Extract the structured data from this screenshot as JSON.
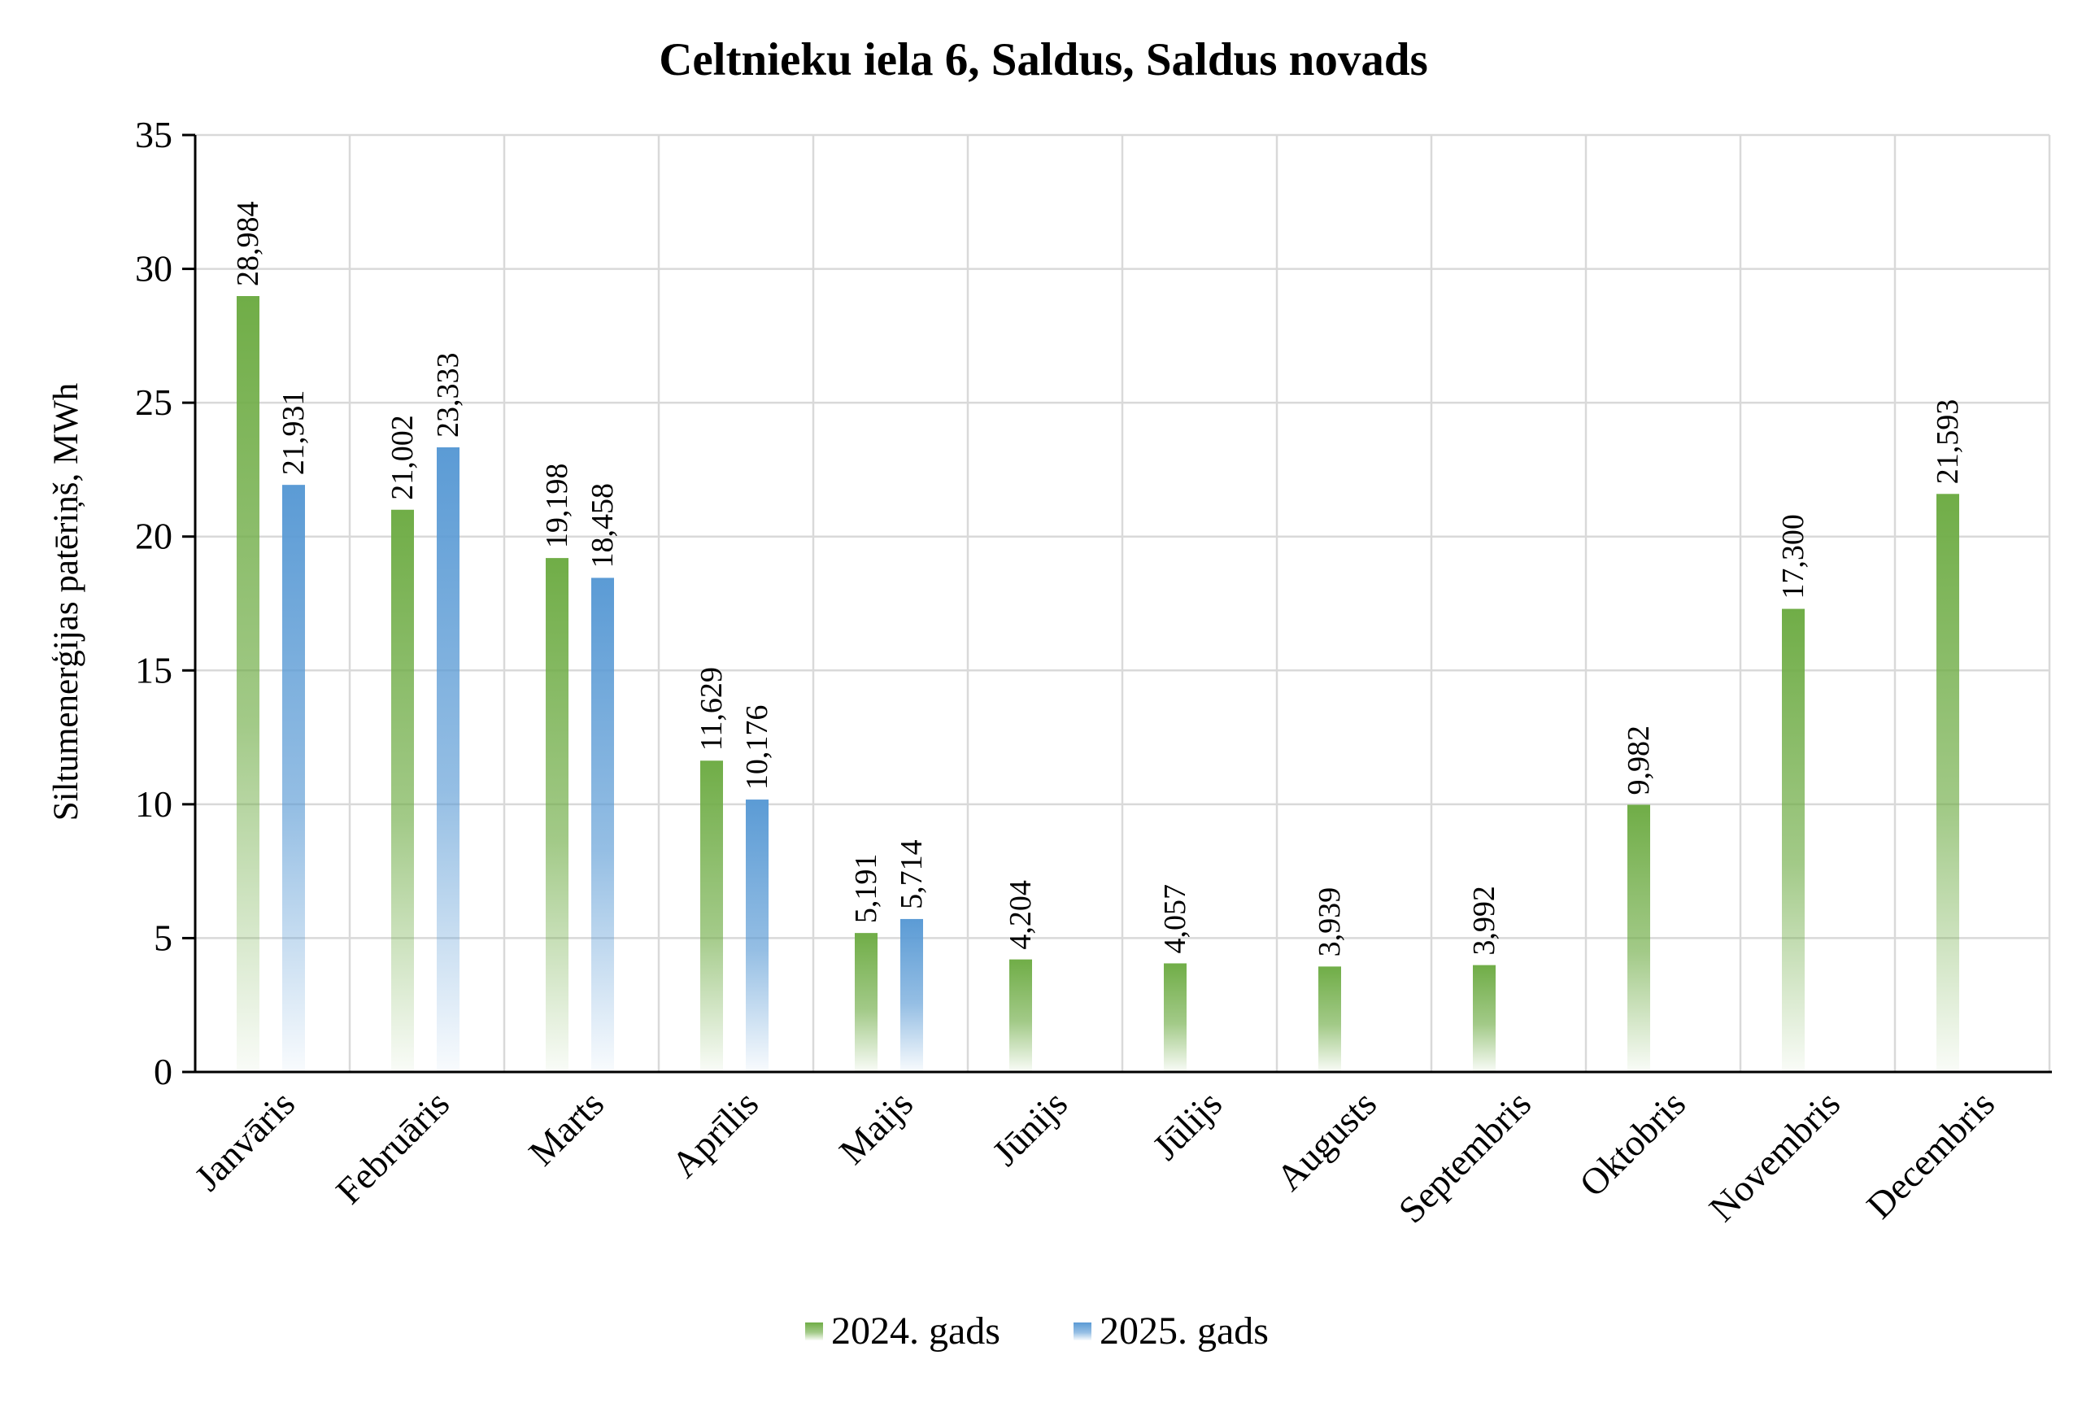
{
  "chart_data": {
    "type": "bar",
    "title": "Celtnieku iela 6, Saldus, Saldus novads",
    "xlabel": "",
    "ylabel": "Siltumenerģijas patēriņš, MWh",
    "ylim": [
      0,
      35
    ],
    "yticks": [
      0,
      5,
      10,
      15,
      20,
      25,
      30,
      35
    ],
    "grid": true,
    "legend_position": "bottom",
    "categories": [
      "Janvāris",
      "Februāris",
      "Marts",
      "Aprīlis",
      "Maijs",
      "Jūnijs",
      "Jūlijs",
      "Augusts",
      "Septembris",
      "Oktobris",
      "Novembris",
      "Decembris"
    ],
    "series": [
      {
        "name": "2024. gads",
        "color": "#70ad47",
        "values": [
          28.984,
          21.002,
          19.198,
          11.629,
          5.191,
          4.204,
          4.057,
          3.939,
          3.992,
          9.982,
          17.3,
          21.593
        ],
        "labels": [
          "28,984",
          "21,002",
          "19,198",
          "11,629",
          "5,191",
          "4,204",
          "4,057",
          "3,939",
          "3,992",
          "9,982",
          "17,300",
          "21,593"
        ]
      },
      {
        "name": "2025. gads",
        "color": "#5b9bd5",
        "values": [
          21.931,
          23.333,
          18.458,
          10.176,
          5.714,
          null,
          null,
          null,
          null,
          null,
          null,
          null
        ],
        "labels": [
          "21,931",
          "23,333",
          "18,458",
          "10,176",
          "5,714",
          null,
          null,
          null,
          null,
          null,
          null,
          null
        ]
      }
    ]
  }
}
